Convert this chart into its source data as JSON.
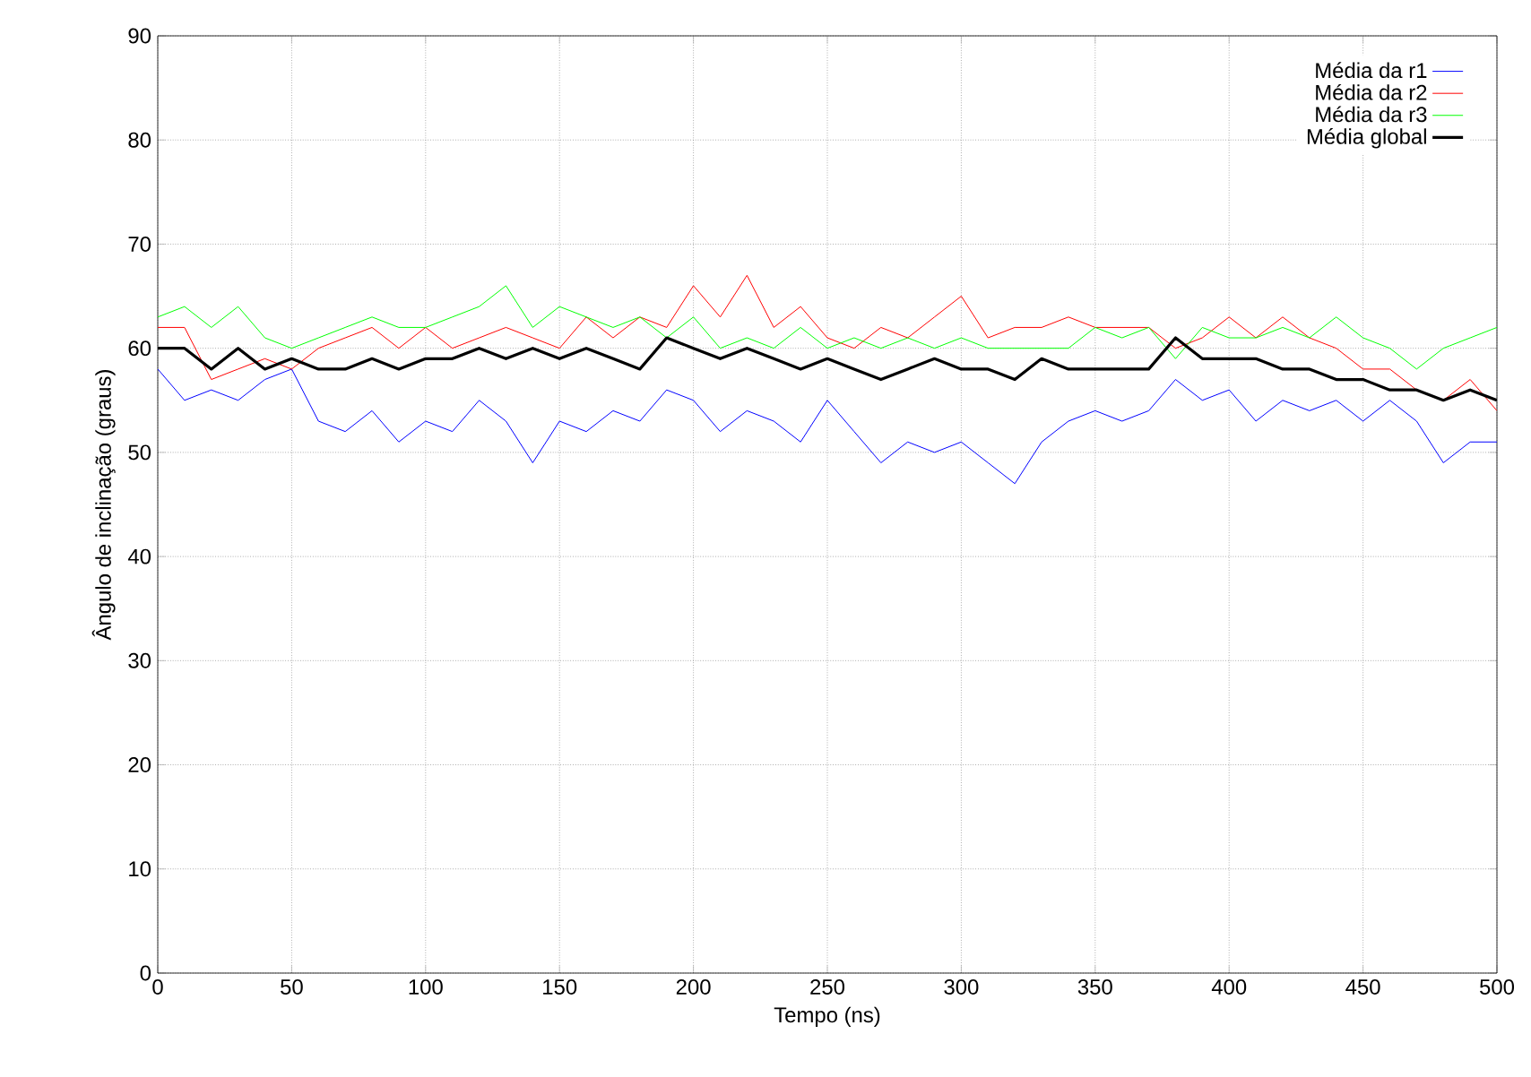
{
  "chart_data": {
    "type": "line",
    "xlabel": "Tempo (ns)",
    "ylabel": "Ângulo de inclinação (graus)",
    "x": [
      0,
      10,
      20,
      30,
      40,
      50,
      60,
      70,
      80,
      90,
      100,
      110,
      120,
      130,
      140,
      150,
      160,
      170,
      180,
      190,
      200,
      210,
      220,
      230,
      240,
      250,
      260,
      270,
      280,
      290,
      300,
      310,
      320,
      330,
      340,
      350,
      360,
      370,
      380,
      390,
      400,
      410,
      420,
      430,
      440,
      450,
      460,
      470,
      480,
      490,
      500
    ],
    "series": [
      {
        "name": "Média da r1",
        "color": "#0000ff",
        "values": [
          58,
          55,
          56,
          55,
          57,
          58,
          53,
          52,
          54,
          51,
          53,
          52,
          55,
          53,
          49,
          53,
          52,
          54,
          53,
          56,
          55,
          52,
          54,
          53,
          51,
          55,
          52,
          49,
          51,
          50,
          51,
          49,
          47,
          51,
          53,
          54,
          53,
          54,
          57,
          55,
          56,
          53,
          55,
          54,
          55,
          53,
          55,
          53,
          49,
          51,
          51
        ]
      },
      {
        "name": "Média da r2",
        "color": "#ff0000",
        "values": [
          62,
          62,
          57,
          58,
          59,
          58,
          60,
          61,
          62,
          60,
          62,
          60,
          61,
          62,
          61,
          60,
          63,
          61,
          63,
          62,
          66,
          63,
          67,
          62,
          64,
          61,
          60,
          62,
          61,
          63,
          65,
          61,
          62,
          62,
          63,
          62,
          62,
          62,
          60,
          61,
          63,
          61,
          63,
          61,
          60,
          58,
          58,
          56,
          55,
          57,
          54
        ]
      },
      {
        "name": "Média da r3",
        "color": "#00ff00",
        "values": [
          63,
          64,
          62,
          64,
          61,
          60,
          61,
          62,
          63,
          62,
          62,
          63,
          64,
          66,
          62,
          64,
          63,
          62,
          63,
          61,
          63,
          60,
          61,
          60,
          62,
          60,
          61,
          60,
          61,
          60,
          61,
          60,
          60,
          60,
          60,
          62,
          61,
          62,
          59,
          62,
          61,
          61,
          62,
          61,
          63,
          61,
          60,
          58,
          60,
          61,
          62
        ]
      },
      {
        "name": "Média global",
        "color": "#000000",
        "values": [
          60,
          60,
          58,
          60,
          58,
          59,
          58,
          58,
          59,
          58,
          59,
          59,
          60,
          59,
          60,
          59,
          60,
          59,
          58,
          61,
          60,
          59,
          60,
          59,
          58,
          59,
          58,
          57,
          58,
          59,
          58,
          58,
          57,
          59,
          58,
          58,
          58,
          58,
          61,
          59,
          59,
          59,
          58,
          58,
          57,
          57,
          56,
          56,
          55,
          56,
          55
        ]
      }
    ],
    "xlim": [
      0,
      500
    ],
    "ylim": [
      0,
      90
    ],
    "xticks": [
      0,
      50,
      100,
      150,
      200,
      250,
      300,
      350,
      400,
      450,
      500
    ],
    "yticks": [
      0,
      10,
      20,
      30,
      40,
      50,
      60,
      70,
      80,
      90
    ],
    "grid": true,
    "legend": "top right",
    "marker": "none",
    "line_style": "solid"
  }
}
